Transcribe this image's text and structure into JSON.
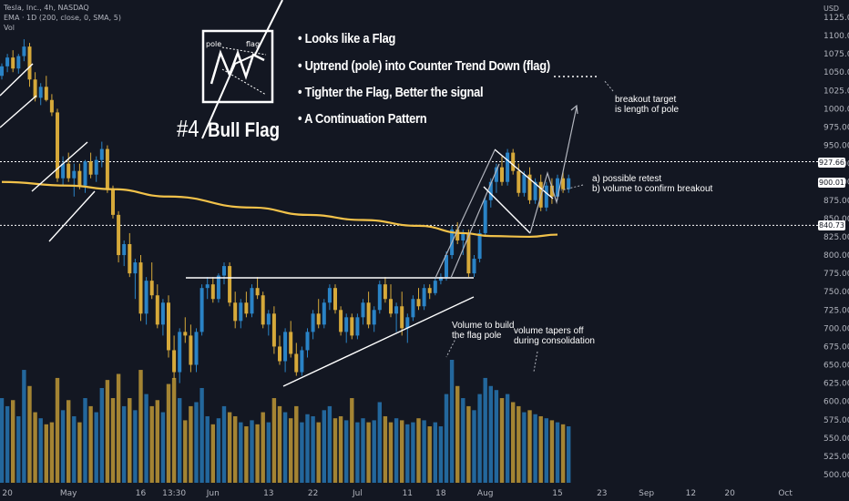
{
  "header": {
    "symbol_line": "Tesla, Inc., 4h, NASDAQ",
    "ema_line": "EMA · 1D (200, close, 0, SMA, 5)",
    "vol_line": "Vol"
  },
  "currency": "USD",
  "bullets": [
    "• Looks like a Flag",
    "• Uptrend (pole) into Counter Trend Down (flag)",
    "• Tighter the Flag, Better the signal",
    "• A Continuation Pattern"
  ],
  "logo": {
    "pole_label": "pole",
    "flag_label": "flag"
  },
  "title": {
    "number": "#4",
    "name": "Bull Flag"
  },
  "annotations": {
    "breakout_target": [
      "breakout target",
      "is length of pole"
    ],
    "retest": [
      "a) possible retest",
      "b) volume to confirm breakout"
    ],
    "volume_build": [
      "Volume to build",
      "the flag pole"
    ],
    "volume_tapers": [
      "volume tapers off",
      "during consolidation"
    ]
  },
  "price_badges": {
    "upper": "927.66",
    "current": "900.01",
    "lower": "840.73"
  },
  "colors": {
    "background": "#131722",
    "bull": "#2a83c6",
    "bear": "#d6a93a",
    "ema": "#f2c24a",
    "annotation": "#ffffff"
  },
  "chart_data": {
    "type": "candlestick",
    "symbol": "TSLA",
    "interval": "4h",
    "ylim": [
      500,
      1125
    ],
    "y_ticks": [
      500,
      525,
      550,
      575,
      600,
      625,
      650,
      675,
      700,
      725,
      750,
      775,
      800,
      825,
      850,
      875,
      900,
      925,
      950,
      975,
      1000,
      1025,
      1050,
      1075,
      1100,
      1125
    ],
    "y_tick_labels": [
      "500.00",
      "525.00",
      "550.00",
      "575.00",
      "600.00",
      "625.00",
      "650.00",
      "675.00",
      "700.00",
      "725.00",
      "750.00",
      "775.00",
      "800.00",
      "825.00",
      "850.00",
      "875.00",
      "900.00",
      "925.00",
      "950.00",
      "975.00",
      "1000.00",
      "1025.00",
      "1050.00",
      "1075.00",
      "1100.00",
      "1125.00"
    ],
    "x_tick_labels": [
      "20",
      "May",
      "16",
      "13:30",
      "Jun",
      "13",
      "22",
      "Jul",
      "11",
      "18",
      "Aug",
      "15",
      "23",
      "Sep",
      "12",
      "20",
      "Oct"
    ],
    "x_tick_index": [
      1,
      12,
      25,
      31,
      38,
      48,
      56,
      64,
      73,
      79,
      87,
      100,
      108,
      116,
      124,
      131,
      141
    ],
    "ema_200": [
      [
        0,
        900
      ],
      [
        12,
        895
      ],
      [
        20,
        890
      ],
      [
        30,
        880
      ],
      [
        45,
        865
      ],
      [
        55,
        855
      ],
      [
        65,
        848
      ],
      [
        75,
        840
      ],
      [
        83,
        830
      ],
      [
        88,
        826
      ],
      [
        95,
        825
      ],
      [
        100,
        828
      ]
    ],
    "horizontal_levels": [
      927.66,
      840.73
    ],
    "candles": [
      [
        1045,
        1062,
        1040,
        1058,
        420
      ],
      [
        1058,
        1075,
        1050,
        1070,
        380
      ],
      [
        1070,
        1080,
        1050,
        1055,
        410
      ],
      [
        1055,
        1075,
        1048,
        1072,
        330
      ],
      [
        1072,
        1095,
        1065,
        1085,
        560
      ],
      [
        1085,
        1090,
        1030,
        1040,
        480
      ],
      [
        1040,
        1050,
        1010,
        1015,
        350
      ],
      [
        1015,
        1035,
        1005,
        1030,
        320
      ],
      [
        1030,
        1045,
        1010,
        1012,
        290
      ],
      [
        1012,
        1020,
        990,
        995,
        300
      ],
      [
        995,
        1000,
        900,
        905,
        520
      ],
      [
        905,
        935,
        895,
        925,
        360
      ],
      [
        925,
        940,
        900,
        905,
        410
      ],
      [
        905,
        925,
        880,
        915,
        330
      ],
      [
        915,
        925,
        890,
        895,
        300
      ],
      [
        895,
        930,
        885,
        928,
        420
      ],
      [
        928,
        940,
        905,
        910,
        380
      ],
      [
        910,
        935,
        900,
        930,
        350
      ],
      [
        930,
        955,
        920,
        945,
        470
      ],
      [
        945,
        950,
        885,
        890,
        510
      ],
      [
        890,
        895,
        850,
        855,
        420
      ],
      [
        855,
        860,
        790,
        800,
        540
      ],
      [
        800,
        820,
        785,
        815,
        380
      ],
      [
        815,
        830,
        770,
        775,
        420
      ],
      [
        775,
        795,
        740,
        790,
        360
      ],
      [
        790,
        800,
        710,
        720,
        560
      ],
      [
        720,
        770,
        705,
        765,
        440
      ],
      [
        765,
        790,
        740,
        745,
        380
      ],
      [
        745,
        760,
        700,
        705,
        410
      ],
      [
        705,
        740,
        690,
        735,
        350
      ],
      [
        735,
        745,
        660,
        670,
        490
      ],
      [
        670,
        690,
        630,
        640,
        520
      ],
      [
        640,
        700,
        625,
        695,
        420
      ],
      [
        695,
        715,
        680,
        690,
        310
      ],
      [
        690,
        705,
        640,
        650,
        380
      ],
      [
        650,
        700,
        640,
        695,
        400
      ],
      [
        695,
        760,
        690,
        755,
        470
      ],
      [
        755,
        770,
        740,
        760,
        330
      ],
      [
        760,
        770,
        735,
        740,
        290
      ],
      [
        740,
        775,
        735,
        772,
        320
      ],
      [
        772,
        790,
        760,
        785,
        380
      ],
      [
        785,
        790,
        730,
        735,
        350
      ],
      [
        735,
        750,
        700,
        710,
        330
      ],
      [
        710,
        740,
        700,
        735,
        300
      ],
      [
        735,
        750,
        715,
        720,
        280
      ],
      [
        720,
        760,
        715,
        755,
        310
      ],
      [
        755,
        770,
        740,
        745,
        290
      ],
      [
        745,
        750,
        700,
        705,
        350
      ],
      [
        705,
        725,
        690,
        720,
        300
      ],
      [
        720,
        730,
        665,
        675,
        420
      ],
      [
        675,
        690,
        650,
        655,
        380
      ],
      [
        655,
        700,
        640,
        695,
        350
      ],
      [
        695,
        710,
        660,
        665,
        320
      ],
      [
        665,
        680,
        635,
        640,
        380
      ],
      [
        640,
        675,
        635,
        670,
        300
      ],
      [
        670,
        700,
        660,
        695,
        340
      ],
      [
        695,
        725,
        685,
        720,
        330
      ],
      [
        720,
        740,
        700,
        705,
        300
      ],
      [
        705,
        740,
        700,
        735,
        360
      ],
      [
        735,
        760,
        725,
        755,
        380
      ],
      [
        755,
        760,
        720,
        725,
        320
      ],
      [
        725,
        730,
        690,
        695,
        330
      ],
      [
        695,
        720,
        680,
        715,
        310
      ],
      [
        715,
        720,
        685,
        690,
        420
      ],
      [
        690,
        720,
        685,
        715,
        300
      ],
      [
        715,
        740,
        705,
        735,
        320
      ],
      [
        735,
        750,
        700,
        705,
        300
      ],
      [
        705,
        730,
        695,
        725,
        310
      ],
      [
        725,
        765,
        720,
        760,
        400
      ],
      [
        760,
        770,
        735,
        740,
        330
      ],
      [
        740,
        760,
        715,
        720,
        300
      ],
      [
        720,
        735,
        695,
        730,
        320
      ],
      [
        730,
        750,
        690,
        700,
        310
      ],
      [
        700,
        720,
        680,
        715,
        290
      ],
      [
        715,
        745,
        710,
        740,
        300
      ],
      [
        740,
        755,
        725,
        730,
        320
      ],
      [
        730,
        760,
        725,
        755,
        310
      ],
      [
        755,
        760,
        740,
        748,
        280
      ],
      [
        748,
        770,
        745,
        765,
        300
      ],
      [
        765,
        775,
        760,
        770,
        280
      ],
      [
        770,
        805,
        765,
        800,
        440
      ],
      [
        800,
        840,
        795,
        835,
        610
      ],
      [
        835,
        845,
        815,
        820,
        480
      ],
      [
        820,
        835,
        800,
        830,
        420
      ],
      [
        830,
        835,
        770,
        775,
        380
      ],
      [
        775,
        800,
        770,
        795,
        360
      ],
      [
        795,
        835,
        790,
        830,
        440
      ],
      [
        830,
        880,
        825,
        875,
        520
      ],
      [
        875,
        905,
        865,
        900,
        480
      ],
      [
        900,
        925,
        885,
        920,
        460
      ],
      [
        920,
        935,
        895,
        900,
        420
      ],
      [
        900,
        945,
        895,
        940,
        440
      ],
      [
        940,
        945,
        910,
        915,
        400
      ],
      [
        915,
        925,
        880,
        885,
        380
      ],
      [
        885,
        915,
        880,
        910,
        350
      ],
      [
        910,
        920,
        870,
        875,
        360
      ],
      [
        875,
        905,
        870,
        900,
        340
      ],
      [
        900,
        910,
        860,
        865,
        330
      ],
      [
        865,
        900,
        860,
        895,
        320
      ],
      [
        895,
        905,
        870,
        880,
        310
      ],
      [
        880,
        910,
        875,
        905,
        300
      ],
      [
        905,
        915,
        885,
        890,
        290
      ],
      [
        890,
        910,
        885,
        905,
        280
      ]
    ]
  }
}
